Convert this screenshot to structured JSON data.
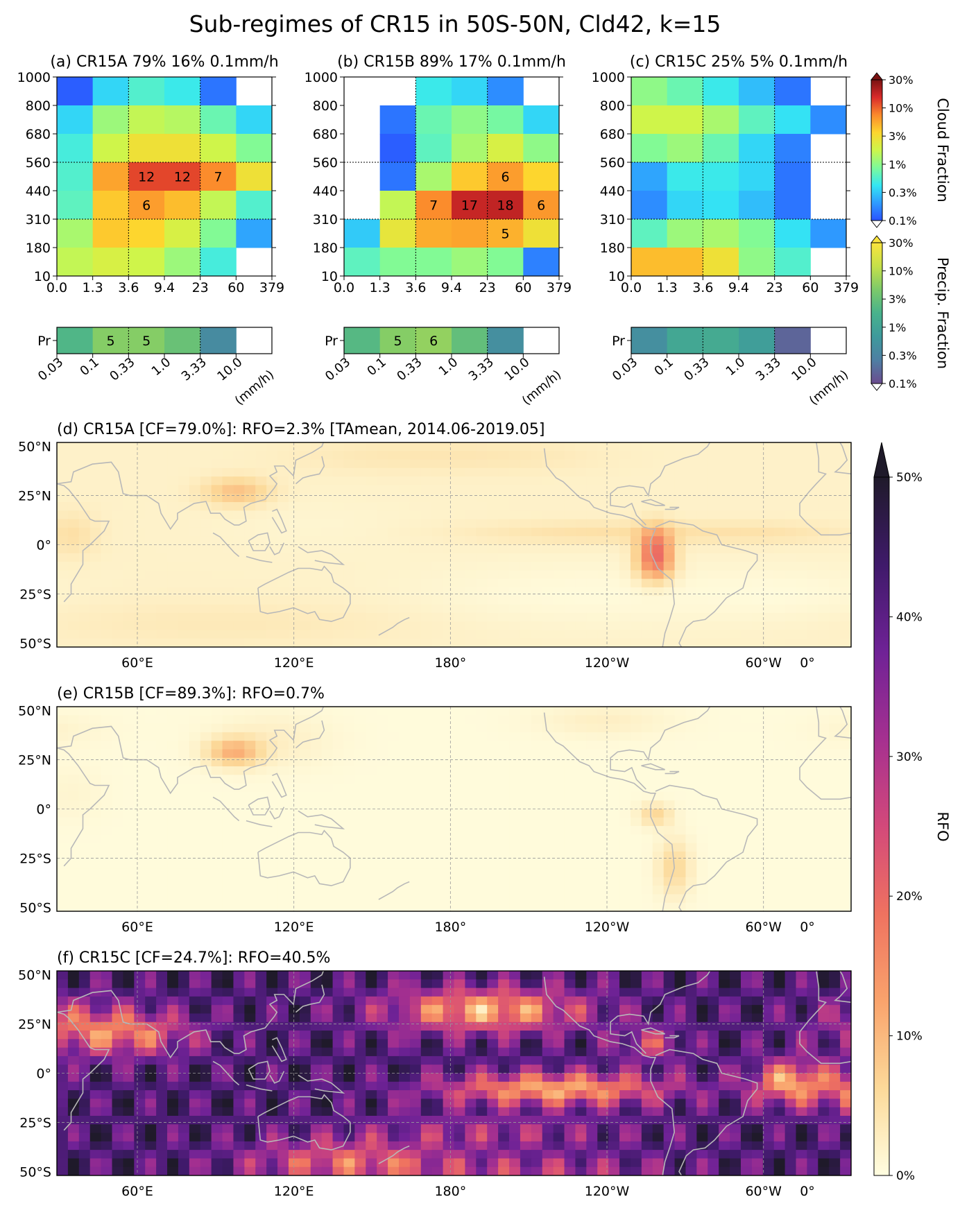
{
  "title": "Sub-regimes of CR15 in 50S-50N, Cld42, k=15",
  "colors": {
    "cloud_cmap": [
      "#2a52ff",
      "#2e9bff",
      "#34e7f3",
      "#7dfa9a",
      "#cdf64b",
      "#fdd62e",
      "#fb8a2c",
      "#d92b2a",
      "#7a1212"
    ],
    "precip_cmap": [
      "#6b4c8f",
      "#4e7fa3",
      "#3e9a9c",
      "#48b28c",
      "#7cca6a",
      "#c5e049",
      "#fbe43d"
    ],
    "rfo_cmap": [
      "#fffde0",
      "#fcd999",
      "#f9a36c",
      "#ef7260",
      "#d3497a",
      "#a53090",
      "#6f2296",
      "#3f1a6a",
      "#1f1a2a"
    ],
    "masked": "#ffffff"
  },
  "chart_data": {
    "type": "heatmap",
    "joint_histograms": {
      "ylabels": [
        "1000",
        "800",
        "680",
        "560",
        "440",
        "310",
        "180",
        "10"
      ],
      "xlabels": [
        "0.0",
        "1.3",
        "3.6",
        "9.4",
        "23",
        "60",
        "379"
      ],
      "precip_xlabels": [
        "0.03",
        "0.1",
        "0.33",
        "1.0",
        "3.33",
        "10.0",
        "(mm/h)"
      ],
      "precip_row_label": "Pr",
      "panels": [
        {
          "title": "(a) CR15A 79% 16% 0.1mm/h",
          "cloud_log10": [
            [
              -0.95,
              -0.45,
              -0.25,
              -0.35,
              -0.85,
              null
            ],
            [
              -0.45,
              0.05,
              0.2,
              0.15,
              -0.15,
              -0.45
            ],
            [
              -0.3,
              0.25,
              0.45,
              0.45,
              0.25,
              -0.05
            ],
            [
              -0.25,
              0.75,
              1.08,
              1.08,
              0.85,
              0.45
            ],
            [
              -0.2,
              0.6,
              0.78,
              0.65,
              0.2,
              -0.25
            ],
            [
              0.1,
              0.6,
              0.55,
              0.3,
              -0.05,
              -0.65
            ],
            [
              0.2,
              0.3,
              0.25,
              0.05,
              -0.3,
              null
            ]
          ],
          "cloud_labels": [
            [
              null,
              null,
              null,
              null,
              null,
              null
            ],
            [
              null,
              null,
              null,
              null,
              null,
              null
            ],
            [
              null,
              null,
              null,
              null,
              null,
              null
            ],
            [
              null,
              null,
              "12",
              "12",
              "7",
              null
            ],
            [
              null,
              null,
              "6",
              null,
              null,
              null
            ],
            [
              null,
              null,
              null,
              null,
              null,
              null
            ],
            [
              null,
              null,
              null,
              null,
              null,
              null
            ]
          ],
          "precip_log10": [
            0.3,
            0.7,
            0.7,
            0.5,
            -0.4,
            null
          ],
          "precip_labels": [
            null,
            "5",
            "5",
            null,
            null,
            null
          ]
        },
        {
          "title": "(b) CR15B 89% 17% 0.1mm/h",
          "cloud_log10": [
            [
              null,
              null,
              -0.35,
              -0.45,
              -0.75,
              null
            ],
            [
              null,
              -0.85,
              -0.15,
              0.0,
              -0.1,
              -0.45
            ],
            [
              null,
              -0.95,
              -0.2,
              0.1,
              0.3,
              0.0
            ],
            [
              null,
              -0.85,
              0.1,
              0.6,
              0.78,
              0.55
            ],
            [
              null,
              0.2,
              0.85,
              1.23,
              1.25,
              0.8
            ],
            [
              -0.5,
              0.4,
              0.72,
              0.75,
              0.7,
              0.45
            ],
            [
              -0.2,
              -0.05,
              -0.05,
              0.05,
              -0.05,
              -0.8
            ]
          ],
          "cloud_labels": [
            [
              null,
              null,
              null,
              null,
              null,
              null
            ],
            [
              null,
              null,
              null,
              null,
              null,
              null
            ],
            [
              null,
              null,
              null,
              null,
              null,
              null
            ],
            [
              null,
              null,
              null,
              null,
              "6",
              null
            ],
            [
              null,
              null,
              "7",
              "17",
              "18",
              "6"
            ],
            [
              null,
              null,
              null,
              null,
              "5",
              null
            ],
            [
              null,
              null,
              null,
              null,
              null,
              null
            ]
          ],
          "precip_log10": [
            0.35,
            0.7,
            0.78,
            0.45,
            -0.35,
            null
          ],
          "precip_labels": [
            null,
            "5",
            "6",
            null,
            null,
            null
          ]
        },
        {
          "title": "(c) CR15C 25% 5% 0.1mm/h",
          "cloud_log10": [
            [
              0.0,
              -0.15,
              -0.35,
              -0.55,
              -0.85,
              null
            ],
            [
              0.25,
              0.25,
              0.1,
              -0.2,
              -0.4,
              -0.75
            ],
            [
              -0.05,
              0.05,
              -0.15,
              -0.45,
              -0.8,
              null
            ],
            [
              -0.65,
              -0.35,
              -0.35,
              -0.45,
              -0.85,
              null
            ],
            [
              -0.75,
              -0.45,
              -0.4,
              -0.55,
              -0.85,
              null
            ],
            [
              -0.2,
              0.05,
              0.1,
              -0.05,
              -0.4,
              -0.7
            ],
            [
              0.65,
              0.65,
              0.45,
              0.0,
              -0.25,
              null
            ]
          ],
          "cloud_labels": [
            [
              null,
              null,
              null,
              null,
              null,
              null
            ],
            [
              null,
              null,
              null,
              null,
              null,
              null
            ],
            [
              null,
              null,
              null,
              null,
              null,
              null
            ],
            [
              null,
              null,
              null,
              null,
              null,
              null
            ],
            [
              null,
              null,
              null,
              null,
              null,
              null
            ],
            [
              null,
              null,
              null,
              null,
              null,
              null
            ],
            [
              null,
              null,
              null,
              null,
              null,
              null
            ]
          ],
          "precip_log10": [
            -0.35,
            0.05,
            0.1,
            -0.1,
            -0.8,
            null
          ],
          "precip_labels": [
            null,
            null,
            null,
            null,
            null,
            null
          ]
        }
      ],
      "cloud_colorbar": {
        "label": "Cloud Fraction",
        "ticks": [
          "30%",
          "10%",
          "3%",
          "1%",
          "0.3%",
          "0.1%"
        ]
      },
      "precip_colorbar": {
        "label": "Precip. Fraction",
        "ticks": [
          "30%",
          "10%",
          "3%",
          "1%",
          "0.3%",
          "0.1%"
        ]
      }
    },
    "maps": {
      "lat_labels": [
        "50°N",
        "25°N",
        "0°",
        "25°S",
        "50°S"
      ],
      "lon_labels": [
        "60°E",
        "120°E",
        "180°",
        "120°W",
        "60°W",
        "0°"
      ],
      "panels": [
        {
          "title": "(d) CR15A [CF=79.0%]: RFO=2.3%  [TAmean, 2014.06-2019.05]",
          "regime": "A"
        },
        {
          "title": "(e) CR15B [CF=89.3%]: RFO=0.7%",
          "regime": "B"
        },
        {
          "title": "(f) CR15C [CF=24.7%]: RFO=40.5%",
          "regime": "C"
        }
      ],
      "colorbar": {
        "label": "RFO",
        "ticks": [
          "50%",
          "40%",
          "30%",
          "20%",
          "10%",
          "0%"
        ],
        "range": [
          0,
          50
        ]
      }
    }
  }
}
